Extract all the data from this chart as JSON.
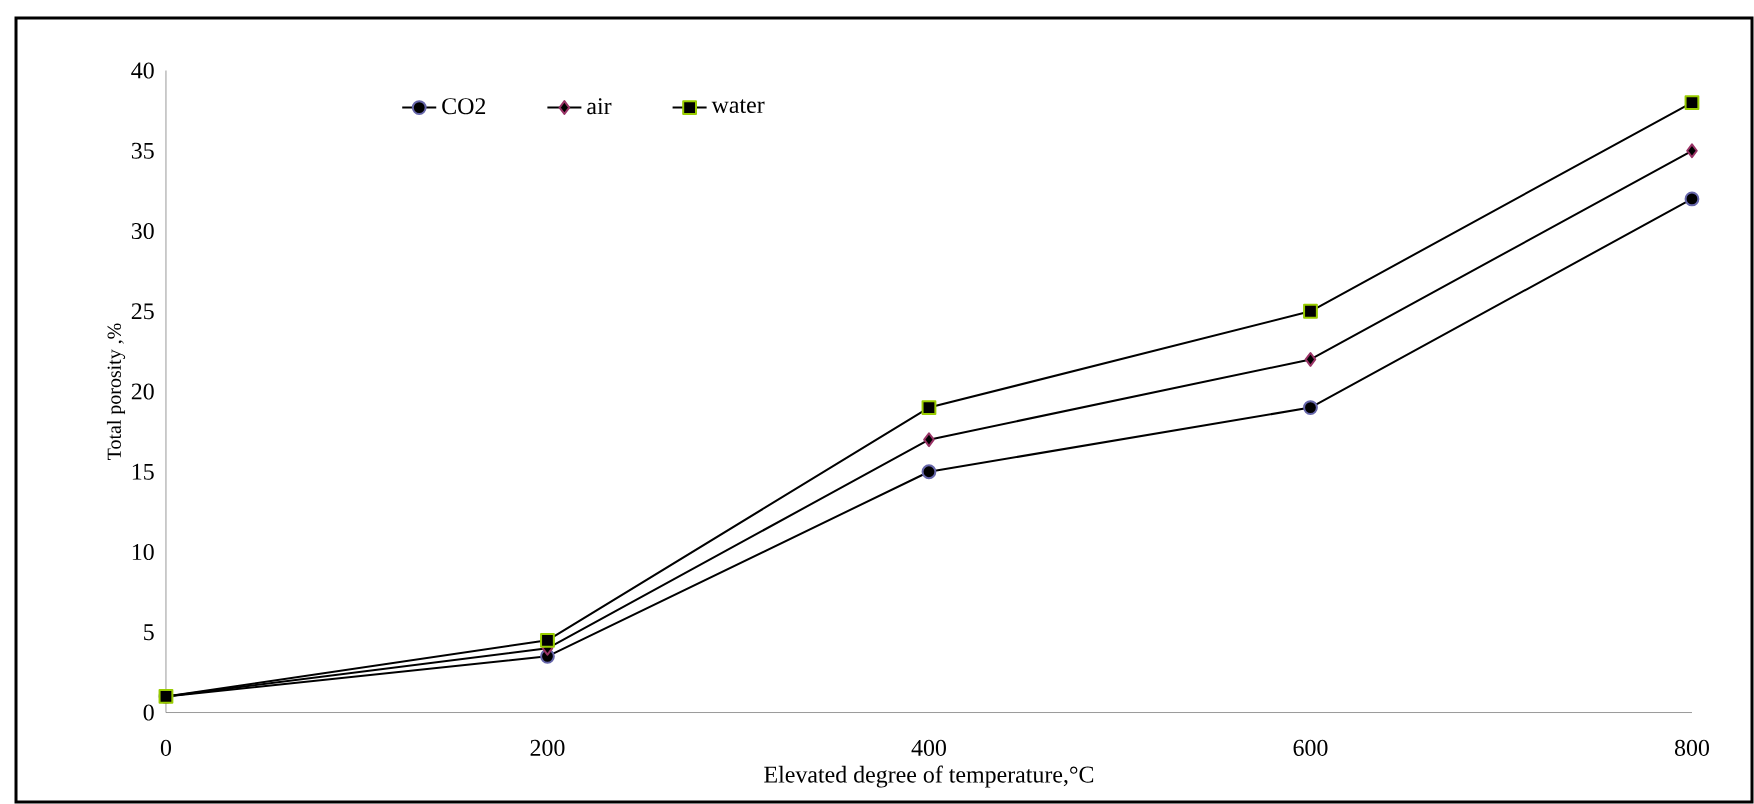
{
  "chart_data": {
    "type": "line",
    "xlabel": "Elevated degree of temperature,°C",
    "ylabel": "Total porosity ,%",
    "x": [
      0,
      200,
      400,
      600,
      800
    ],
    "series": [
      {
        "name": "CO2",
        "color": "#6666aa",
        "marker": "circle",
        "values": [
          1,
          3.5,
          15,
          19,
          32
        ]
      },
      {
        "name": "air",
        "color": "#993366",
        "marker": "diamond",
        "values": [
          1,
          4,
          17,
          22,
          35
        ]
      },
      {
        "name": "water",
        "color": "#99cc00",
        "marker": "square",
        "values": [
          1,
          4.5,
          19,
          25,
          38
        ]
      }
    ],
    "xlim": [
      0,
      800
    ],
    "xticks": [
      0,
      200,
      400,
      600,
      800
    ],
    "ylim": [
      0,
      40
    ],
    "yticks": [
      0,
      5,
      10,
      15,
      20,
      25,
      30,
      35,
      40
    ],
    "grid": false,
    "legend": "top left"
  }
}
